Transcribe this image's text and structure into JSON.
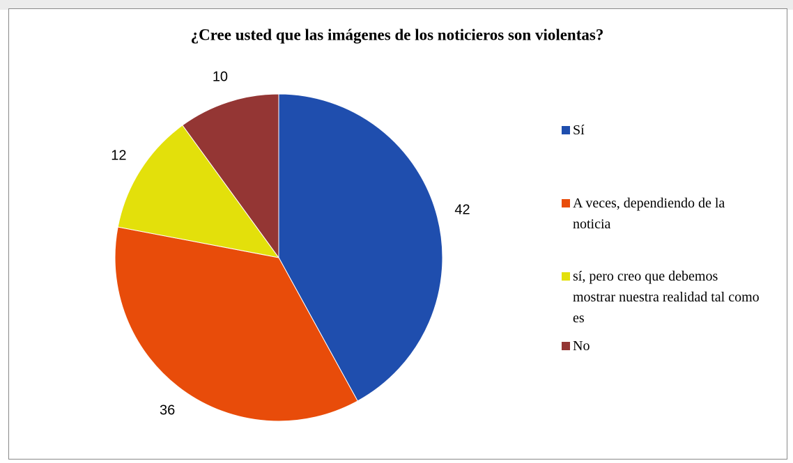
{
  "chart_data": {
    "type": "pie",
    "title": "¿Cree usted que las imágenes de los noticieros son violentas?",
    "categories": [
      "Sí",
      "A veces, dependiendo de la noticia",
      "sí, pero creo que debemos mostrar nuestra realidad tal como es",
      "No"
    ],
    "values": [
      42,
      36,
      12,
      10
    ],
    "colors": [
      "#1f4eae",
      "#e84c0a",
      "#e3e00b",
      "#943634"
    ],
    "legend": "right"
  }
}
